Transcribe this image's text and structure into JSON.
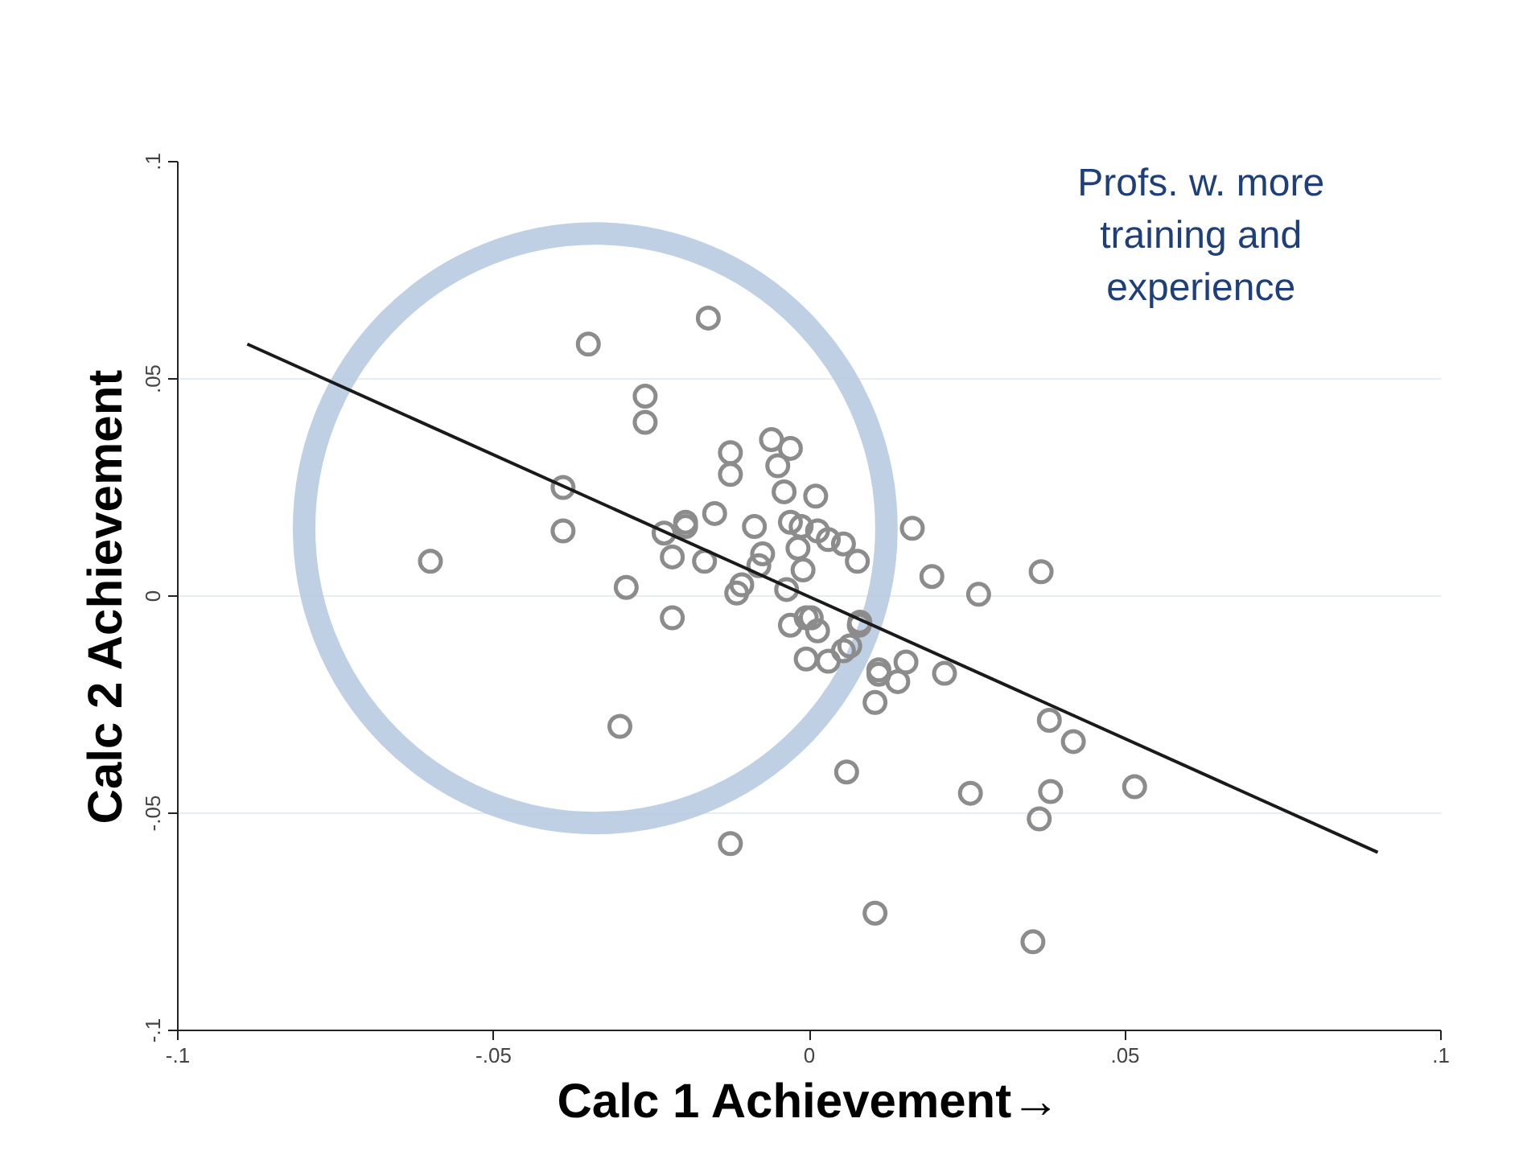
{
  "chart_data": {
    "type": "scatter",
    "xlabel": "Calc 1 Achievement→",
    "ylabel": "Calc 2 Achievement",
    "annotations": [
      "Profs. w. more training and experience"
    ],
    "xlim": [
      -0.1,
      0.1
    ],
    "ylim": [
      -0.1,
      0.1
    ],
    "xticks": [
      {
        "value": -0.1,
        "label": "-.1"
      },
      {
        "value": -0.05,
        "label": "-.05"
      },
      {
        "value": 0,
        "label": "0"
      },
      {
        "value": 0.05,
        "label": ".05"
      },
      {
        "value": 0.1,
        "label": ".1"
      }
    ],
    "yticks": [
      {
        "value": -0.1,
        "label": "-.1"
      },
      {
        "value": -0.05,
        "label": "-.05"
      },
      {
        "value": 0,
        "label": "0"
      },
      {
        "value": 0.05,
        "label": ".05"
      },
      {
        "value": 0.1,
        "label": ".1"
      }
    ],
    "grid": "y",
    "series": [
      {
        "type": "scatter",
        "color": "#8c8c8c",
        "marker": "circle",
        "x": [
          -0.06,
          -0.035,
          -0.016,
          -0.026,
          -0.026,
          -0.039,
          -0.039,
          -0.029,
          -0.03,
          -0.0125,
          -0.0125,
          -0.006,
          -0.003,
          -0.005,
          -0.004,
          0.001,
          -0.015,
          -0.0087,
          -0.0196,
          -0.0196,
          -0.023,
          -0.0217,
          -0.0166,
          -0.0074,
          -0.008,
          -0.003,
          -0.0013,
          0.0013,
          0.003,
          0.0054,
          -0.0018,
          -0.001,
          0.0076,
          -0.0217,
          -0.0107,
          -0.0115,
          -0.0036,
          -0.003,
          -0.0005,
          0.0013,
          0.0003,
          -0.0005,
          0.003,
          0.0054,
          0.008,
          0.011,
          0.0104,
          0.0059,
          -0.0125,
          0.0104,
          0.0163,
          0.0194,
          0.0268,
          0.0367,
          0.0079,
          0.0064,
          0.011,
          0.0153,
          0.014,
          0.0214,
          0.038,
          0.0418,
          0.0255,
          0.0382,
          0.0364,
          0.0515,
          0.0354
        ],
        "values": [
          0.008,
          0.058,
          0.064,
          0.046,
          0.04,
          0.025,
          0.015,
          0.002,
          -0.03,
          0.033,
          0.028,
          0.036,
          0.034,
          0.03,
          0.024,
          0.023,
          0.019,
          0.016,
          0.017,
          0.016,
          0.0145,
          0.009,
          0.008,
          0.0097,
          0.007,
          0.017,
          0.016,
          0.015,
          0.013,
          0.012,
          0.011,
          0.006,
          0.008,
          -0.005,
          0.0026,
          0.0007,
          0.0015,
          -0.0067,
          -0.005,
          -0.008,
          -0.005,
          -0.0145,
          -0.015,
          -0.0126,
          -0.006,
          -0.017,
          -0.0245,
          -0.0405,
          -0.057,
          -0.073,
          0.0156,
          0.0045,
          0.0004,
          0.0056,
          -0.0067,
          -0.0115,
          -0.018,
          -0.0152,
          -0.0197,
          -0.0178,
          -0.0286,
          -0.0335,
          -0.0454,
          -0.045,
          -0.0513,
          -0.0439,
          -0.0796
        ]
      },
      {
        "type": "line",
        "color": "#1a1a1a",
        "x": [
          -0.089,
          0.09
        ],
        "values": [
          0.058,
          -0.059
        ]
      }
    ]
  }
}
